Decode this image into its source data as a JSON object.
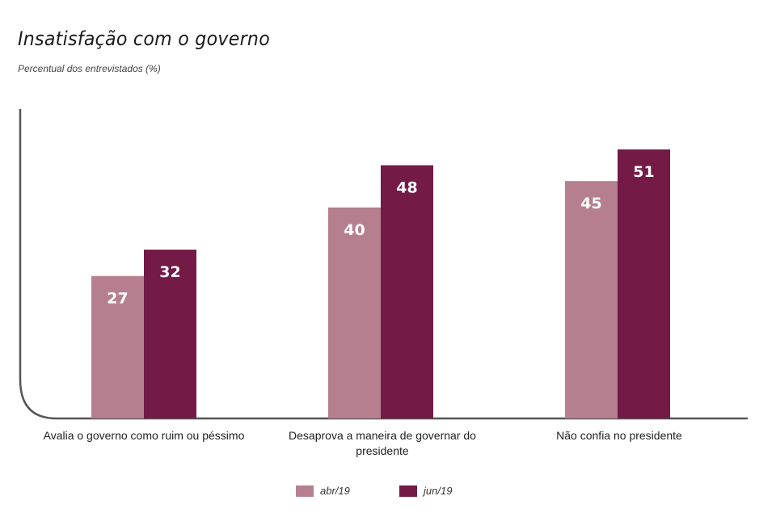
{
  "chart_data": {
    "type": "bar",
    "title": "Insatisfação com o governo",
    "subtitle": "Percentual dos entrevistados (%)",
    "categories": [
      "Avalia o governo como ruim ou péssimo",
      "Desaprova a maneira de governar do presidente",
      "Não confia no presidente"
    ],
    "series": [
      {
        "name": "abr/19",
        "color": "#b67f8f",
        "values": [
          27,
          40,
          45
        ]
      },
      {
        "name": "jun/19",
        "color": "#731a47",
        "values": [
          32,
          48,
          51
        ]
      }
    ],
    "ylim": [
      0,
      60
    ],
    "grid": false,
    "legend_position": "bottom-center"
  },
  "colors": {
    "axis": "#555555",
    "bar_label": "#ffffff"
  }
}
